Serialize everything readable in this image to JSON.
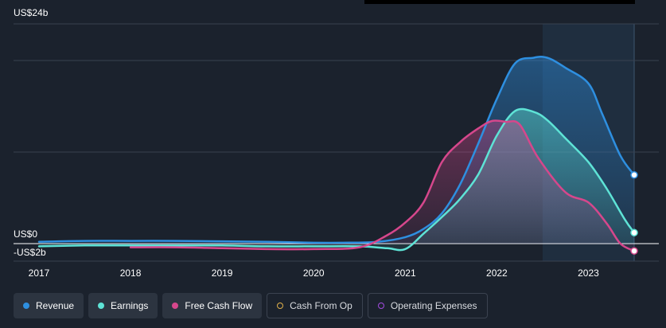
{
  "chart_data": {
    "type": "area",
    "title": "",
    "xlabel": "",
    "ylabel": "",
    "y_labels": [
      "US$24b",
      "US$0",
      "-US$2b"
    ],
    "ylim": [
      -2,
      24
    ],
    "xlim": [
      2017,
      2023.5
    ],
    "x_ticks": [
      "2017",
      "2018",
      "2019",
      "2020",
      "2021",
      "2022",
      "2023"
    ],
    "highlight_after": 2022.5,
    "series": [
      {
        "name": "Revenue",
        "color": "#2e8fe0",
        "points": [
          [
            2017,
            0.2
          ],
          [
            2017.5,
            0.3
          ],
          [
            2018,
            0.3
          ],
          [
            2018.5,
            0.3
          ],
          [
            2019,
            0.25
          ],
          [
            2019.5,
            0.2
          ],
          [
            2020,
            0.1
          ],
          [
            2020.3,
            0.1
          ],
          [
            2020.7,
            0.2
          ],
          [
            2021,
            0.7
          ],
          [
            2021.2,
            1.6
          ],
          [
            2021.4,
            3.3
          ],
          [
            2021.6,
            6.5
          ],
          [
            2021.8,
            11
          ],
          [
            2022,
            15.8
          ],
          [
            2022.2,
            19.7
          ],
          [
            2022.4,
            20.3
          ],
          [
            2022.5,
            20.4
          ],
          [
            2022.6,
            20.1
          ],
          [
            2022.75,
            19.2
          ],
          [
            2023,
            17.5
          ],
          [
            2023.15,
            14.2
          ],
          [
            2023.35,
            9.6
          ],
          [
            2023.5,
            7.5
          ]
        ]
      },
      {
        "name": "Earnings",
        "color": "#5ee3d6",
        "points": [
          [
            2017,
            -0.3
          ],
          [
            2017.5,
            -0.2
          ],
          [
            2018,
            -0.2
          ],
          [
            2018.5,
            -0.2
          ],
          [
            2019,
            -0.2
          ],
          [
            2019.5,
            -0.3
          ],
          [
            2020,
            -0.3
          ],
          [
            2020.5,
            -0.3
          ],
          [
            2020.8,
            -0.5
          ],
          [
            2021,
            -0.6
          ],
          [
            2021.2,
            1.1
          ],
          [
            2021.4,
            2.9
          ],
          [
            2021.6,
            4.9
          ],
          [
            2021.8,
            7.6
          ],
          [
            2022,
            11.8
          ],
          [
            2022.2,
            14.5
          ],
          [
            2022.4,
            14.4
          ],
          [
            2022.55,
            13.5
          ],
          [
            2022.75,
            11.5
          ],
          [
            2023,
            8.9
          ],
          [
            2023.2,
            6
          ],
          [
            2023.4,
            2.6
          ],
          [
            2023.5,
            1.2
          ]
        ]
      },
      {
        "name": "Free Cash Flow",
        "color": "#d6478c",
        "points": [
          [
            2018,
            -0.4
          ],
          [
            2018.5,
            -0.4
          ],
          [
            2019,
            -0.5
          ],
          [
            2019.5,
            -0.6
          ],
          [
            2020,
            -0.6
          ],
          [
            2020.5,
            -0.4
          ],
          [
            2020.8,
            0.9
          ],
          [
            2021,
            2.3
          ],
          [
            2021.2,
            4.5
          ],
          [
            2021.4,
            8.9
          ],
          [
            2021.6,
            11.1
          ],
          [
            2021.8,
            12.6
          ],
          [
            2021.95,
            13.4
          ],
          [
            2022.1,
            13.3
          ],
          [
            2022.25,
            13
          ],
          [
            2022.45,
            9.4
          ],
          [
            2022.75,
            5.6
          ],
          [
            2023,
            4.5
          ],
          [
            2023.2,
            2.2
          ],
          [
            2023.35,
            0
          ],
          [
            2023.5,
            -0.8
          ]
        ]
      }
    ],
    "legend": {
      "placement": "bottom-left",
      "items": [
        {
          "label": "Revenue",
          "color": "#2e8fe0",
          "active": true
        },
        {
          "label": "Earnings",
          "color": "#5ee3d6",
          "active": true
        },
        {
          "label": "Free Cash Flow",
          "color": "#d6478c",
          "active": true
        },
        {
          "label": "Cash From Op",
          "color": "#e0b04a",
          "active": false
        },
        {
          "label": "Operating Expenses",
          "color": "#a34be0",
          "active": false
        }
      ]
    }
  }
}
